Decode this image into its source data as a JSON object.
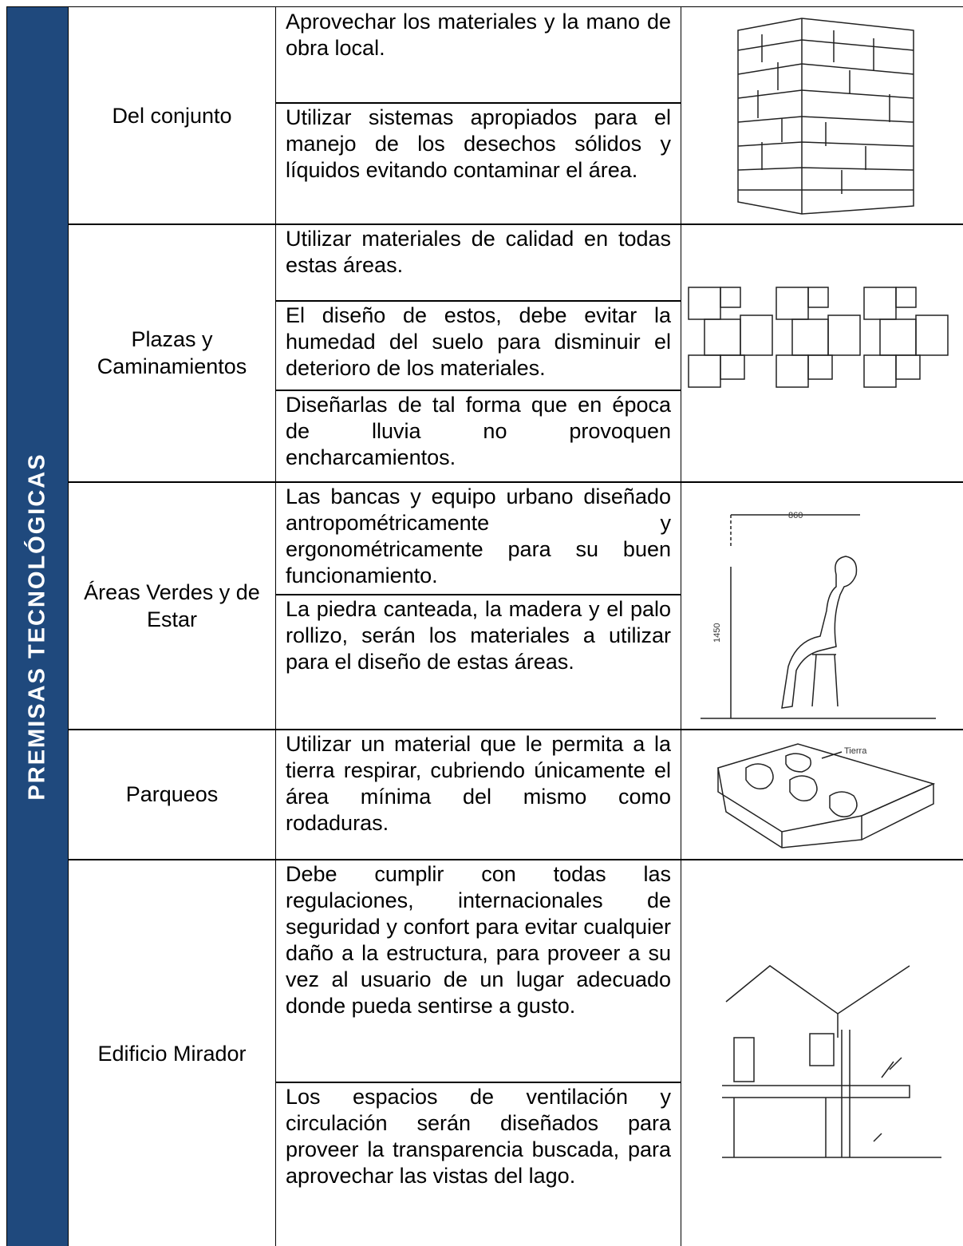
{
  "side_label": "PREMISAS TECNOLÓGICAS",
  "rows": [
    {
      "label": "Del conjunto",
      "items": [
        "Aprovechar los materiales y la mano de obra local.",
        "Utilizar sistemas apropiados para el manejo de los desechos sólidos y líquidos evitando contaminar el área."
      ]
    },
    {
      "label": "Plazas y Caminamientos",
      "items": [
        "Utilizar materiales de calidad en todas estas áreas.",
        "El diseño de estos, debe evitar la humedad del suelo para disminuir el deterioro de los materiales.",
        "Diseñarlas de tal forma que en época de lluvia no provoquen encharcamientos."
      ]
    },
    {
      "label": "Áreas Verdes y de Estar",
      "items": [
        "Las bancas y equipo urbano diseñado antropométricamente y ergonométricamente para su buen funcionamiento.",
        "La piedra canteada, la madera y el palo rollizo, serán los materiales a utilizar para el diseño de estas áreas."
      ],
      "figure_labels": [
        "860",
        "1450"
      ]
    },
    {
      "label": "Parqueos",
      "items": [
        "Utilizar un material que le permita a la tierra respirar, cubriendo únicamente el área mínima del mismo como rodaduras."
      ],
      "figure_labels": [
        "Tierra"
      ]
    },
    {
      "label": "Edificio Mirador",
      "items": [
        "Debe cumplir con todas las regulaciones, internacionales de seguridad y confort para evitar cualquier daño a la estructura, para proveer a su vez al usuario de un lugar adecuado donde pueda sentirse a gusto.",
        "Los espacios de ventilación y circulación serán diseñados para proveer la transparencia buscada, para aprovechar las vistas del lago."
      ]
    }
  ]
}
